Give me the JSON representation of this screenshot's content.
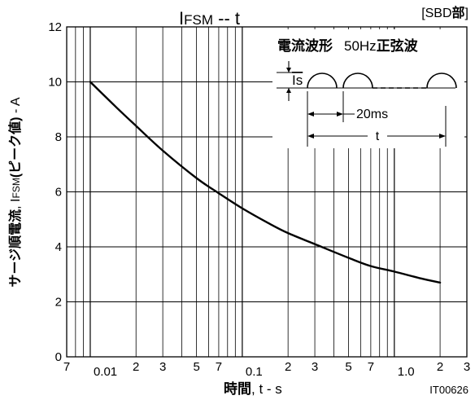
{
  "chart_data": {
    "type": "line",
    "title": {
      "main": "I",
      "sub": "FSM",
      "rest": " -- t"
    },
    "tag": {
      "open": "[SBD",
      "bold": "部",
      "close": "]"
    },
    "xlabel": {
      "bold": "時間",
      "rest": ", t - s"
    },
    "ylabel": {
      "bold_a": "サージ順電流",
      "comma": ", ",
      "main": "I",
      "sub": "FSM",
      "bold_b": "(ピーク値)",
      "rest": " - A"
    },
    "code": "IT00626",
    "x_scale": "log",
    "xlim": [
      0.007,
      3
    ],
    "ylim": [
      0,
      12
    ],
    "x_major_ticks": [
      {
        "value": 0.01,
        "label": "0.01"
      },
      {
        "value": 0.1,
        "label": "0.1"
      },
      {
        "value": 1.0,
        "label": "1.0"
      }
    ],
    "x_minor_ticks": [
      {
        "value": 0.007,
        "label": "7"
      },
      {
        "value": 0.02,
        "label": "2"
      },
      {
        "value": 0.03,
        "label": "3"
      },
      {
        "value": 0.05,
        "label": "5"
      },
      {
        "value": 0.07,
        "label": "7"
      },
      {
        "value": 0.2,
        "label": "2"
      },
      {
        "value": 0.3,
        "label": "3"
      },
      {
        "value": 0.5,
        "label": "5"
      },
      {
        "value": 0.7,
        "label": "7"
      },
      {
        "value": 2.0,
        "label": "2"
      },
      {
        "value": 3.0,
        "label": "3"
      }
    ],
    "y_ticks": [
      {
        "value": 0,
        "label": "0"
      },
      {
        "value": 2,
        "label": "2"
      },
      {
        "value": 4,
        "label": "4"
      },
      {
        "value": 6,
        "label": "6"
      },
      {
        "value": 8,
        "label": "8"
      },
      {
        "value": 10,
        "label": "10"
      },
      {
        "value": 12,
        "label": "12"
      }
    ],
    "grid": true,
    "series": [
      {
        "x": [
          0.01,
          0.015,
          0.02,
          0.03,
          0.05,
          0.07,
          0.1,
          0.15,
          0.2,
          0.3,
          0.5,
          0.7,
          1.0,
          1.5,
          2.0
        ],
        "y": [
          10.0,
          9.05,
          8.4,
          7.5,
          6.5,
          5.95,
          5.4,
          4.85,
          4.5,
          4.1,
          3.6,
          3.3,
          3.1,
          2.85,
          2.7
        ]
      }
    ],
    "inset": {
      "title_bold": "電流波形",
      "freq": "50Hz",
      "freq_bold": "正弦波",
      "is_label": "Is",
      "period_label": "20ms",
      "duration_label": "t"
    }
  }
}
